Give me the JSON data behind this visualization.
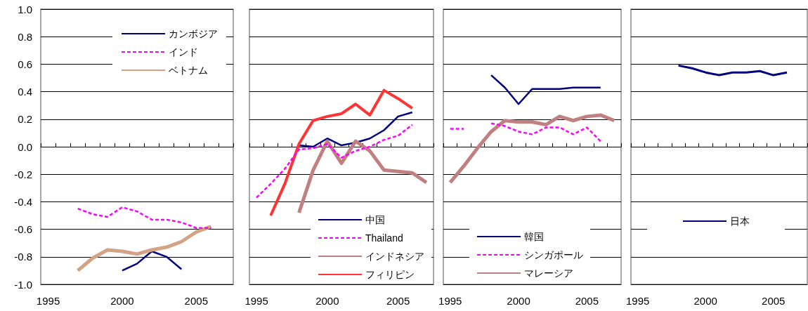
{
  "chart_data": [
    {
      "type": "line",
      "categories": [
        "1995",
        null,
        null,
        null,
        null,
        "2000",
        null,
        null,
        null,
        null,
        "2005",
        null,
        null
      ],
      "ylim": [
        -1,
        1
      ],
      "yticks": [
        {
          "value": -1,
          "label": "-1.0"
        },
        {
          "value": -0.8,
          "label": "-0.8"
        },
        {
          "value": -0.6,
          "label": "-0.6"
        },
        {
          "value": -0.4,
          "label": "-0.4"
        },
        {
          "value": -0.2,
          "label": "-0.2"
        },
        {
          "value": 0,
          "label": "0.0"
        },
        {
          "value": 0.2,
          "label": "0.2"
        },
        {
          "value": 0.4,
          "label": "0.4"
        },
        {
          "value": 0.6,
          "label": "0.6"
        },
        {
          "value": 0.8,
          "label": "0.8"
        },
        {
          "value": 1,
          "label": "1.0"
        }
      ],
      "grid": "y",
      "legend": "top right",
      "marker": "none",
      "series": [
        {
          "name": "カンボジア",
          "color": "#000080",
          "values": [
            null,
            null,
            null,
            null,
            null,
            -0.9,
            -0.85,
            -0.76,
            -0.8,
            -0.89,
            null,
            null,
            null
          ]
        },
        {
          "name": "インド",
          "color": "#ff00ff",
          "line_style": "dashed",
          "values": [
            null,
            null,
            -0.45,
            -0.49,
            -0.51,
            -0.44,
            -0.47,
            -0.53,
            -0.53,
            -0.55,
            -0.59,
            -0.59,
            null
          ]
        },
        {
          "name": "ベトナム",
          "color": "#d4a284",
          "values": [
            null,
            null,
            -0.9,
            -0.81,
            -0.75,
            -0.76,
            -0.78,
            -0.75,
            -0.73,
            -0.69,
            -0.62,
            -0.58,
            null
          ]
        }
      ]
    },
    {
      "type": "line",
      "categories": [
        "1995",
        null,
        null,
        null,
        null,
        "2000",
        null,
        null,
        null,
        null,
        "2005",
        null,
        null
      ],
      "ylim": [
        -1,
        1
      ],
      "yticks": [
        -1,
        -0.8,
        -0.6,
        -0.4,
        -0.2,
        0,
        0.2,
        0.4,
        0.6,
        0.8,
        1
      ],
      "tick_labels": "x",
      "grid": "y",
      "legend": "bottom right",
      "marker": "none",
      "series": [
        {
          "name": "中国",
          "color": "#000080",
          "values": [
            null,
            null,
            null,
            0.01,
            0.0,
            0.06,
            0.01,
            0.03,
            0.06,
            0.12,
            0.22,
            0.25,
            null
          ]
        },
        {
          "name": "Thailand",
          "color": "#ff00ff",
          "line_style": "dashed",
          "values": [
            -0.37,
            -0.27,
            -0.16,
            -0.02,
            -0.01,
            0.02,
            -0.08,
            -0.03,
            0.0,
            0.05,
            0.08,
            0.16,
            null
          ]
        },
        {
          "name": "インドネシア",
          "color": "#c08080",
          "values": [
            null,
            null,
            null,
            -0.48,
            -0.17,
            0.04,
            -0.12,
            0.04,
            -0.03,
            -0.17,
            -0.18,
            -0.19,
            -0.26
          ]
        },
        {
          "name": "フィリピン",
          "color": "#ff3333",
          "values": [
            null,
            -0.5,
            -0.27,
            0.02,
            0.19,
            0.22,
            0.24,
            0.31,
            0.23,
            0.41,
            0.35,
            0.28,
            null
          ]
        }
      ]
    },
    {
      "type": "line",
      "categories": [
        "1995",
        null,
        null,
        null,
        null,
        "2000",
        null,
        null,
        null,
        null,
        "2005",
        null,
        null
      ],
      "ylim": [
        -1,
        1
      ],
      "yticks": [
        -1,
        -0.8,
        -0.6,
        -0.4,
        -0.2,
        0,
        0.2,
        0.4,
        0.6,
        0.8,
        1
      ],
      "tick_labels": "x",
      "grid": "y",
      "legend": "bottom",
      "marker": "none",
      "series": [
        {
          "name": "韓国",
          "color": "#000080",
          "values": [
            null,
            null,
            null,
            0.52,
            0.43,
            0.31,
            0.42,
            0.42,
            0.42,
            0.43,
            0.43,
            0.43,
            null
          ]
        },
        {
          "name": "シンガポール",
          "color": "#ff00ff",
          "line_style": "dashed",
          "values": [
            0.13,
            0.13,
            null,
            0.17,
            0.15,
            0.11,
            0.09,
            0.14,
            0.14,
            0.09,
            0.14,
            0.04,
            null
          ]
        },
        {
          "name": "マレーシア",
          "color": "#c08080",
          "values": [
            -0.26,
            -0.14,
            -0.01,
            0.11,
            0.19,
            0.18,
            0.18,
            0.16,
            0.22,
            0.19,
            0.22,
            0.23,
            0.19
          ]
        }
      ]
    },
    {
      "type": "line",
      "categories": [
        "1995",
        null,
        null,
        null,
        null,
        "2000",
        null,
        null,
        null,
        null,
        "2005",
        null,
        null
      ],
      "ylim": [
        -1,
        1
      ],
      "yticks": [
        -1,
        -0.8,
        -0.6,
        -0.4,
        -0.2,
        0,
        0.2,
        0.4,
        0.6,
        0.8,
        1
      ],
      "tick_labels": "x",
      "grid": "y",
      "legend": "bottom",
      "marker": "none",
      "series": [
        {
          "name": "日本",
          "color": "#000080",
          "values": [
            null,
            null,
            null,
            0.59,
            0.57,
            0.54,
            0.52,
            0.54,
            0.54,
            0.55,
            0.52,
            0.54,
            null
          ]
        }
      ]
    }
  ]
}
